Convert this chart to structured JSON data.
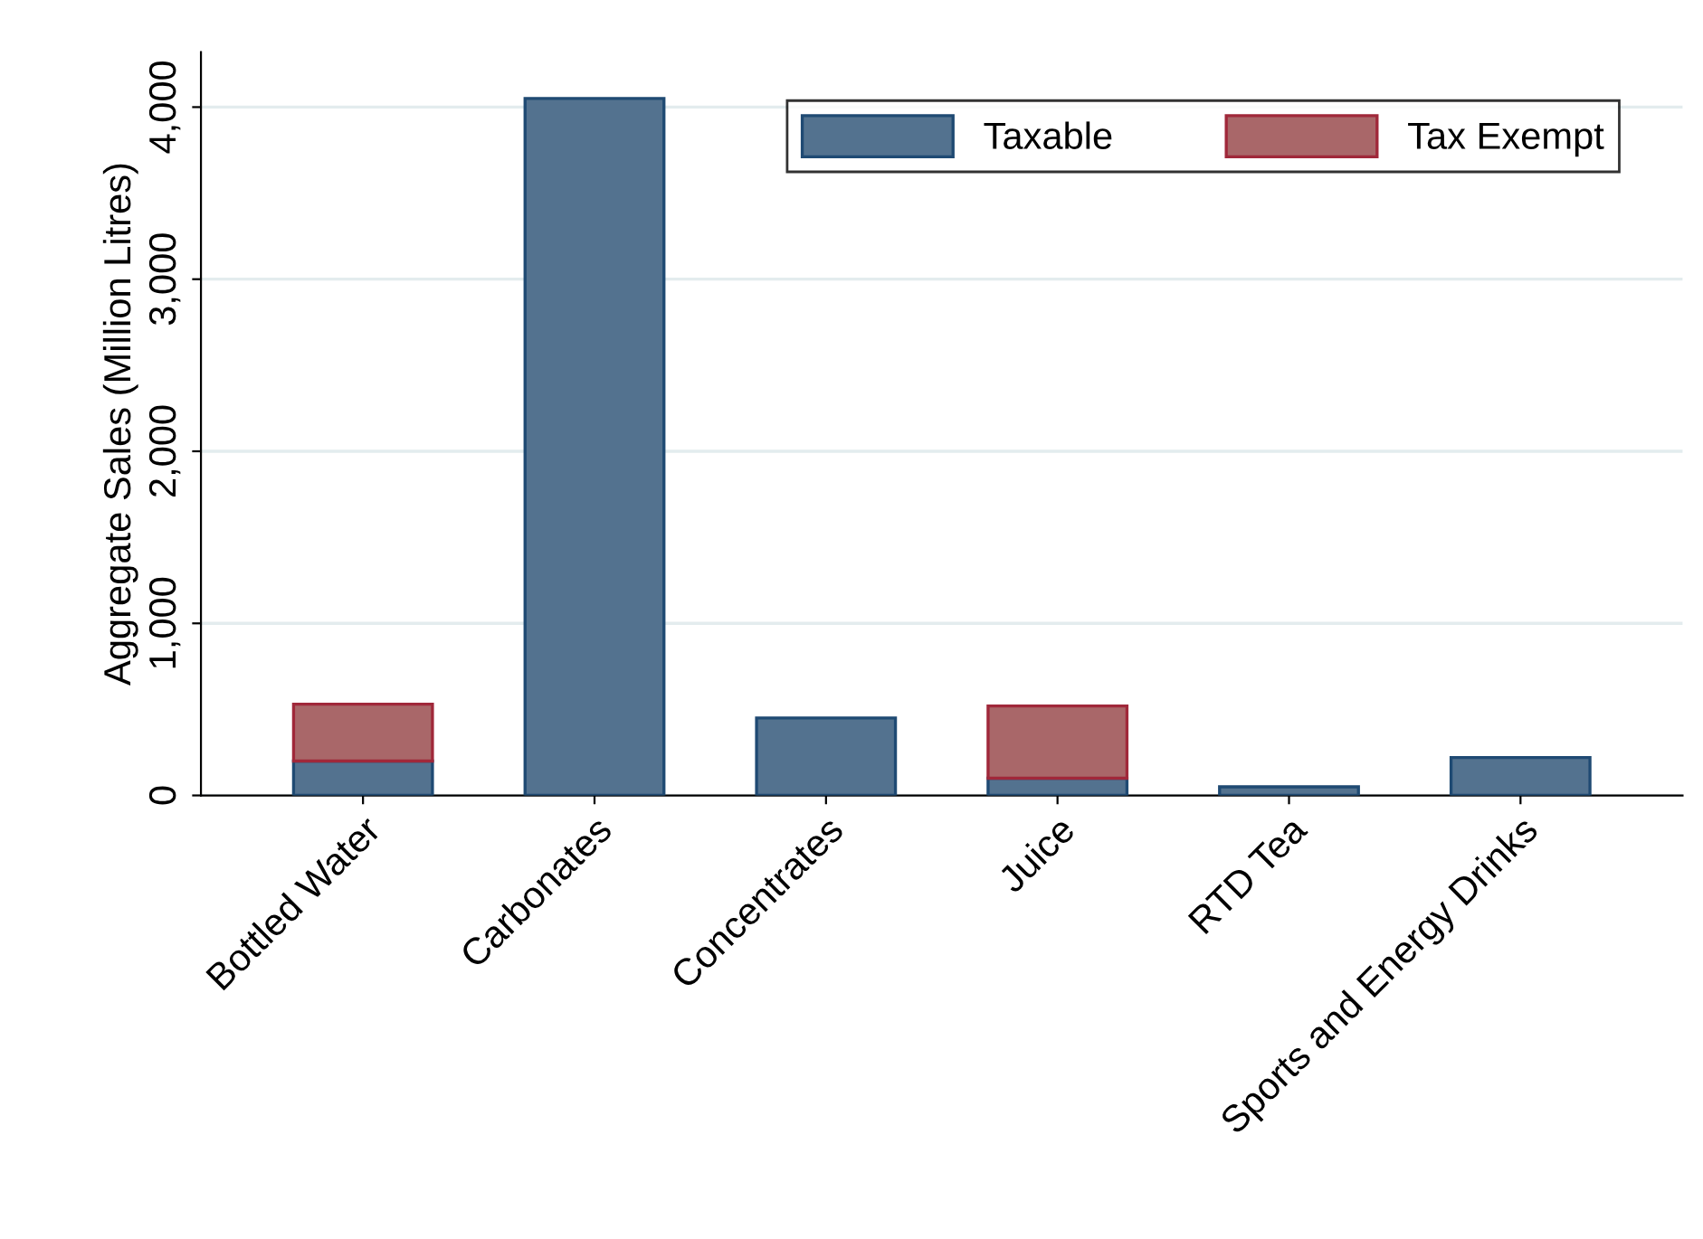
{
  "chart_data": {
    "type": "bar",
    "stacked": true,
    "ylabel": "Aggregate Sales (Million Litres)",
    "categories": [
      "Bottled Water",
      "Carbonates",
      "Concentrates",
      "Juice",
      "RTD Tea",
      "Sports and Energy Drinks"
    ],
    "series": [
      {
        "name": "Taxable",
        "color": "#53728f",
        "values": [
          200,
          4050,
          450,
          100,
          50,
          220
        ]
      },
      {
        "name": "Tax Exempt",
        "color": "#a96769",
        "values": [
          330,
          null,
          null,
          420,
          null,
          null
        ]
      }
    ],
    "ylim": [
      0,
      4320
    ],
    "yticks": [
      {
        "value": 0,
        "label": "0"
      },
      {
        "value": 1000,
        "label": "1,000"
      },
      {
        "value": 2000,
        "label": "2,000"
      },
      {
        "value": 3000,
        "label": "3,000"
      },
      {
        "value": 4000,
        "label": "4,000"
      }
    ],
    "grid": "y",
    "legend": "top right"
  }
}
